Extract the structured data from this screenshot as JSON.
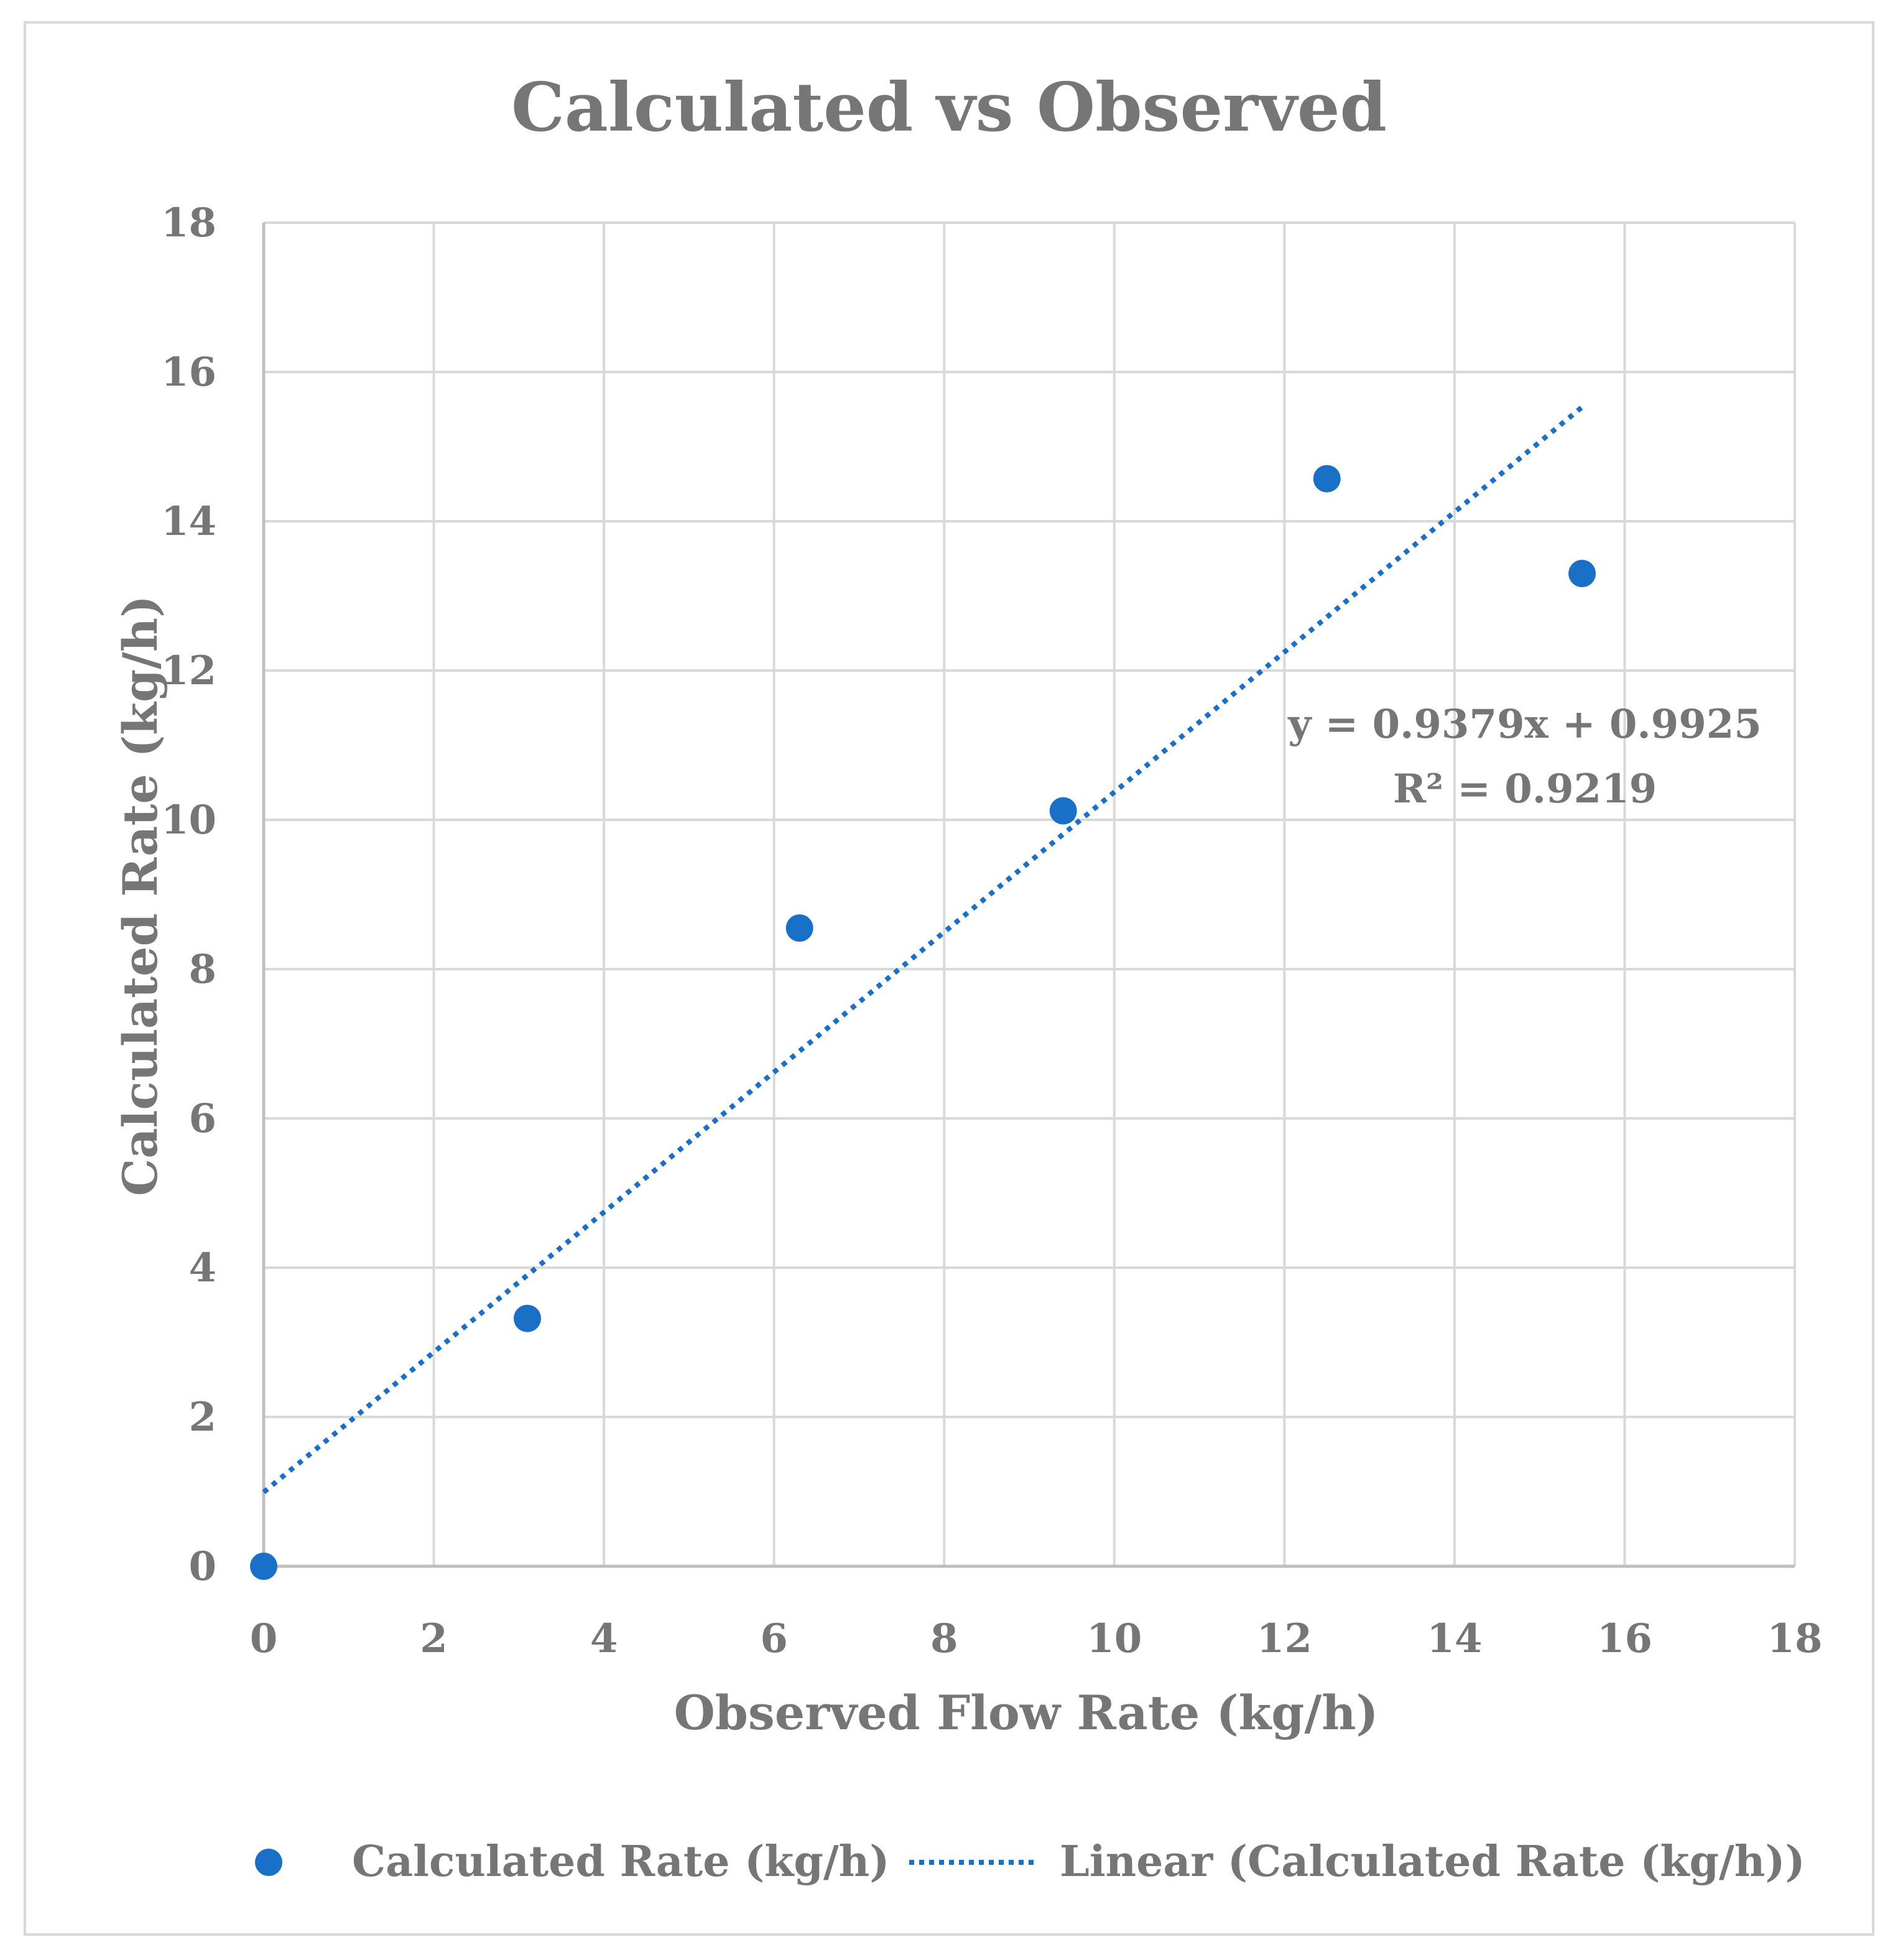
{
  "chart_data": {
    "type": "scatter",
    "title": "Calculated vs Observed",
    "xlabel": "Observed Flow Rate (kg/h)",
    "ylabel": "Calculated Rate (kg/h)",
    "xlim": [
      0,
      18
    ],
    "ylim": [
      0,
      18
    ],
    "xticks": [
      "0",
      "2",
      "4",
      "6",
      "8",
      "10",
      "12",
      "14",
      "16",
      "18"
    ],
    "yticks": [
      "0",
      "2",
      "4",
      "6",
      "8",
      "10",
      "12",
      "14",
      "16",
      "18"
    ],
    "grid": true,
    "series": [
      {
        "name": "Calculated Rate (kg/h)",
        "x": [
          0,
          3.1,
          6.3,
          9.4,
          12.5,
          15.5
        ],
        "y": [
          0,
          3.32,
          8.55,
          10.12,
          14.57,
          13.3
        ]
      }
    ],
    "trendline": {
      "name": "Linear (Calculated Rate (kg/h))",
      "slope": 0.9379,
      "intercept": 0.9925,
      "x_range": [
        0,
        15.5
      ],
      "equation": "y = 0.9379x + 0.9925",
      "r_squared": "R² = 0.9219"
    },
    "legend_position": "bottom",
    "colors": {
      "marker": "#1a6fc7",
      "trendline": "#1a6fc7",
      "grid": "#d9d9d9",
      "text": "#767676"
    }
  }
}
